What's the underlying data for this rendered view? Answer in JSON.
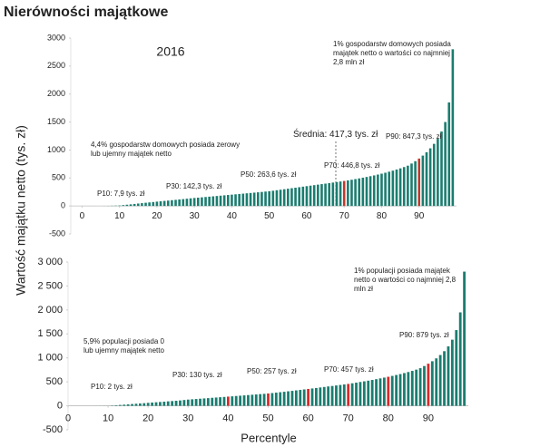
{
  "title": "Nierówności majątkowe",
  "y_axis_label": "Wartość majątku netto (tys. zł)",
  "x_axis_label": "Percentyle",
  "chart_data": [
    {
      "type": "bar",
      "subtitle": "2016",
      "x": [
        1,
        2,
        3,
        4,
        5,
        6,
        7,
        8,
        9,
        10,
        11,
        12,
        13,
        14,
        15,
        16,
        17,
        18,
        19,
        20,
        21,
        22,
        23,
        24,
        25,
        26,
        27,
        28,
        29,
        30,
        31,
        32,
        33,
        34,
        35,
        36,
        37,
        38,
        39,
        40,
        41,
        42,
        43,
        44,
        45,
        46,
        47,
        48,
        49,
        50,
        51,
        52,
        53,
        54,
        55,
        56,
        57,
        58,
        59,
        60,
        61,
        62,
        63,
        64,
        65,
        66,
        67,
        68,
        69,
        70,
        71,
        72,
        73,
        74,
        75,
        76,
        77,
        78,
        79,
        80,
        81,
        82,
        83,
        84,
        85,
        86,
        87,
        88,
        89,
        90,
        91,
        92,
        93,
        94,
        95,
        96,
        97,
        98,
        99
      ],
      "values": [
        0,
        0,
        0,
        0,
        0,
        1,
        2,
        4,
        6,
        7.9,
        15,
        22,
        29,
        36,
        43,
        50,
        57,
        63,
        70,
        77,
        83,
        90,
        96,
        103,
        109,
        116,
        122,
        129,
        136,
        142.3,
        148,
        154,
        160,
        166,
        172,
        178,
        184,
        190,
        196,
        202,
        208,
        214,
        220,
        226,
        232,
        238,
        244,
        250,
        257,
        263.6,
        272,
        281,
        290,
        299,
        308,
        317,
        326,
        335,
        345,
        354,
        363,
        372,
        381,
        390,
        399,
        408,
        418,
        427,
        437,
        446.8,
        457,
        468,
        480,
        492,
        505,
        518,
        532,
        546,
        561,
        577,
        594,
        612,
        631,
        651,
        672,
        695,
        720,
        758,
        800,
        847.3,
        900,
        960,
        1030,
        1110,
        1200,
        1330,
        1500,
        1850,
        2800
      ],
      "color": "#1b7d70",
      "highlight_color": "#c0392b",
      "highlight_x": [
        70,
        90
      ],
      "xlim": [
        -3,
        100
      ],
      "ylim": [
        -500,
        3000
      ],
      "xticks": [
        0,
        10,
        20,
        30,
        40,
        50,
        60,
        70,
        80,
        90
      ],
      "yticks": [
        -500,
        0,
        500,
        1000,
        1500,
        2000,
        2500,
        3000
      ],
      "annotations": [
        "1% gospodarstw domowych posiada majątek netto o wartości co najmniej 2,8 mln zł",
        "4,4% gospodarstw domowych posiada zerowy lub ujemny majątek netto",
        "P10: 7,9 tys. zł",
        "P30: 142,3 tys. zł",
        "P50: 263,6 tys. zł",
        "P70: 446,8 tys. zł",
        "Średnia: 417,3 tys. zł",
        "P90: 847,3 tys. zł"
      ]
    },
    {
      "type": "bar",
      "x": [
        1,
        2,
        3,
        4,
        5,
        6,
        7,
        8,
        9,
        10,
        11,
        12,
        13,
        14,
        15,
        16,
        17,
        18,
        19,
        20,
        21,
        22,
        23,
        24,
        25,
        26,
        27,
        28,
        29,
        30,
        31,
        32,
        33,
        34,
        35,
        36,
        37,
        38,
        39,
        40,
        41,
        42,
        43,
        44,
        45,
        46,
        47,
        48,
        49,
        50,
        51,
        52,
        53,
        54,
        55,
        56,
        57,
        58,
        59,
        60,
        61,
        62,
        63,
        64,
        65,
        66,
        67,
        68,
        69,
        70,
        71,
        72,
        73,
        74,
        75,
        76,
        77,
        78,
        79,
        80,
        81,
        82,
        83,
        84,
        85,
        86,
        87,
        88,
        89,
        90,
        91,
        92,
        93,
        94,
        95,
        96,
        97,
        98,
        99
      ],
      "values": [
        0,
        0,
        0,
        0,
        0,
        0,
        0.5,
        1,
        1.5,
        2,
        6,
        12,
        18,
        24,
        30,
        37,
        43,
        49,
        55,
        62,
        68,
        74,
        80,
        86,
        93,
        99,
        105,
        112,
        121,
        130,
        136,
        142,
        148,
        154,
        160,
        167,
        173,
        179,
        185,
        192,
        198,
        205,
        211,
        218,
        224,
        231,
        237,
        244,
        250,
        257,
        266,
        275,
        284,
        293,
        303,
        312,
        322,
        332,
        342,
        352,
        362,
        372,
        383,
        393,
        404,
        414,
        425,
        435,
        446,
        457,
        470,
        483,
        497,
        511,
        525,
        540,
        556,
        572,
        589,
        606,
        624,
        643,
        662,
        683,
        705,
        729,
        755,
        785,
        830,
        879,
        930,
        990,
        1060,
        1140,
        1240,
        1380,
        1580,
        1950,
        2800
      ],
      "color": "#1b7d70",
      "highlight_color": "#d62b2b",
      "highlight_x": [
        40,
        50,
        60,
        70,
        80,
        90
      ],
      "xlim": [
        0,
        100
      ],
      "ylim": [
        -500,
        3000
      ],
      "xticks": [
        0,
        10,
        20,
        30,
        40,
        50,
        60,
        70,
        80,
        90
      ],
      "yticks": [
        -500,
        0,
        500,
        {
          "value": 1000,
          "label": "1 000"
        },
        {
          "value": 1500,
          "label": "1 500"
        },
        {
          "value": 2000,
          "label": "2 000"
        },
        {
          "value": 2500,
          "label": "2 500"
        },
        {
          "value": 3000,
          "label": "3 000"
        }
      ],
      "annotations": [
        "1% populacji posiada majątek netto o wartości co najmniej 2,8 mln zł",
        "5,9% populacji posiada 0 lub ujemny majątek netto",
        "P10: 2 tys. zł",
        "P30: 130 tys. zł",
        "P50: 257 tys. zł",
        "P70: 457 tys. zł",
        "P90: 879 tys. zł"
      ]
    }
  ]
}
